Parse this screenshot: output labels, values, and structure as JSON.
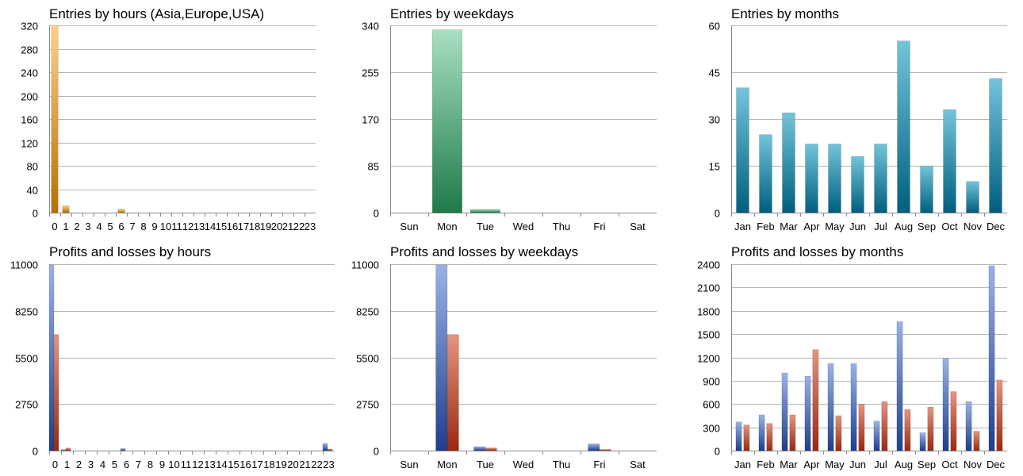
{
  "colors": {
    "entries_hours": [
      "#ffd08a",
      "#b86f00"
    ],
    "entries_weekdays": [
      "#a8e0c2",
      "#1f7a48"
    ],
    "entries_months": [
      "#72c4da",
      "#005f7e"
    ],
    "profit": [
      "#9ab2e6",
      "#1d3f8e"
    ],
    "loss": [
      "#e59480",
      "#9a2a10"
    ]
  },
  "chart_data": [
    {
      "type": "bar",
      "title": "Entries by hours (Asia,Europe,USA)",
      "categories": [
        "0",
        "1",
        "2",
        "3",
        "4",
        "5",
        "6",
        "7",
        "8",
        "9",
        "10",
        "11",
        "12",
        "13",
        "14",
        "15",
        "16",
        "17",
        "18",
        "19",
        "20",
        "21",
        "22",
        "23"
      ],
      "values": [
        320,
        12,
        0,
        0,
        0,
        0,
        6,
        0,
        0,
        0,
        0,
        0,
        0,
        0,
        0,
        0,
        0,
        0,
        0,
        0,
        0,
        0,
        0,
        0
      ],
      "ylim": [
        0,
        320
      ],
      "yticks": [
        "0",
        "40",
        "80",
        "120",
        "160",
        "200",
        "240",
        "280",
        "320"
      ],
      "grid": true
    },
    {
      "type": "bar",
      "title": "Entries by weekdays",
      "categories": [
        "Sun",
        "Mon",
        "Tue",
        "Wed",
        "Thu",
        "Fri",
        "Sat"
      ],
      "values": [
        0,
        332,
        6,
        0,
        0,
        0,
        0
      ],
      "ylim": [
        0,
        340
      ],
      "yticks": [
        "0",
        "85",
        "170",
        "255",
        "340"
      ],
      "grid": true
    },
    {
      "type": "bar",
      "title": "Entries by months",
      "categories": [
        "Jan",
        "Feb",
        "Mar",
        "Apr",
        "May",
        "Jun",
        "Jul",
        "Aug",
        "Sep",
        "Oct",
        "Nov",
        "Dec"
      ],
      "values": [
        40,
        25,
        32,
        22,
        22,
        18,
        22,
        55,
        15,
        33,
        10,
        43
      ],
      "ylim": [
        0,
        60
      ],
      "yticks": [
        "0",
        "15",
        "30",
        "45",
        "60"
      ],
      "grid": true
    },
    {
      "type": "bar",
      "title": "Profits and losses by hours",
      "categories": [
        "0",
        "1",
        "2",
        "3",
        "4",
        "5",
        "6",
        "7",
        "8",
        "9",
        "10",
        "11",
        "12",
        "13",
        "14",
        "15",
        "16",
        "17",
        "18",
        "19",
        "20",
        "21",
        "22",
        "23"
      ],
      "series": [
        {
          "values": [
            10950,
            60,
            0,
            0,
            0,
            0,
            120,
            0,
            0,
            0,
            0,
            0,
            0,
            0,
            0,
            0,
            0,
            0,
            0,
            0,
            0,
            0,
            0,
            420
          ]
        },
        {
          "values": [
            6850,
            150,
            0,
            0,
            0,
            0,
            0,
            0,
            0,
            0,
            0,
            0,
            0,
            0,
            0,
            0,
            0,
            0,
            0,
            0,
            0,
            0,
            0,
            90
          ]
        }
      ],
      "ylim": [
        0,
        11000
      ],
      "yticks": [
        "0",
        "2750",
        "5500",
        "8250",
        "11000"
      ],
      "grid": true
    },
    {
      "type": "bar",
      "title": "Profits and losses by weekdays",
      "categories": [
        "Sun",
        "Mon",
        "Tue",
        "Wed",
        "Thu",
        "Fri",
        "Sat"
      ],
      "series": [
        {
          "values": [
            0,
            10950,
            230,
            0,
            0,
            400,
            0
          ]
        },
        {
          "values": [
            0,
            6850,
            160,
            0,
            0,
            70,
            0
          ]
        }
      ],
      "ylim": [
        0,
        11000
      ],
      "yticks": [
        "0",
        "2750",
        "5500",
        "8250",
        "11000"
      ],
      "grid": true
    },
    {
      "type": "bar",
      "title": "Profits and losses by months",
      "categories": [
        "Jan",
        "Feb",
        "Mar",
        "Apr",
        "May",
        "Jun",
        "Jul",
        "Aug",
        "Sep",
        "Oct",
        "Nov",
        "Dec"
      ],
      "series": [
        {
          "values": [
            370,
            460,
            1000,
            960,
            1120,
            1120,
            380,
            1660,
            230,
            1190,
            630,
            2380
          ]
        },
        {
          "values": [
            330,
            350,
            460,
            1300,
            450,
            600,
            630,
            530,
            560,
            760,
            250,
            910
          ]
        }
      ],
      "ylim": [
        0,
        2400
      ],
      "yticks": [
        "0",
        "300",
        "600",
        "900",
        "1200",
        "1500",
        "1800",
        "2100",
        "2400"
      ],
      "grid": true
    }
  ]
}
